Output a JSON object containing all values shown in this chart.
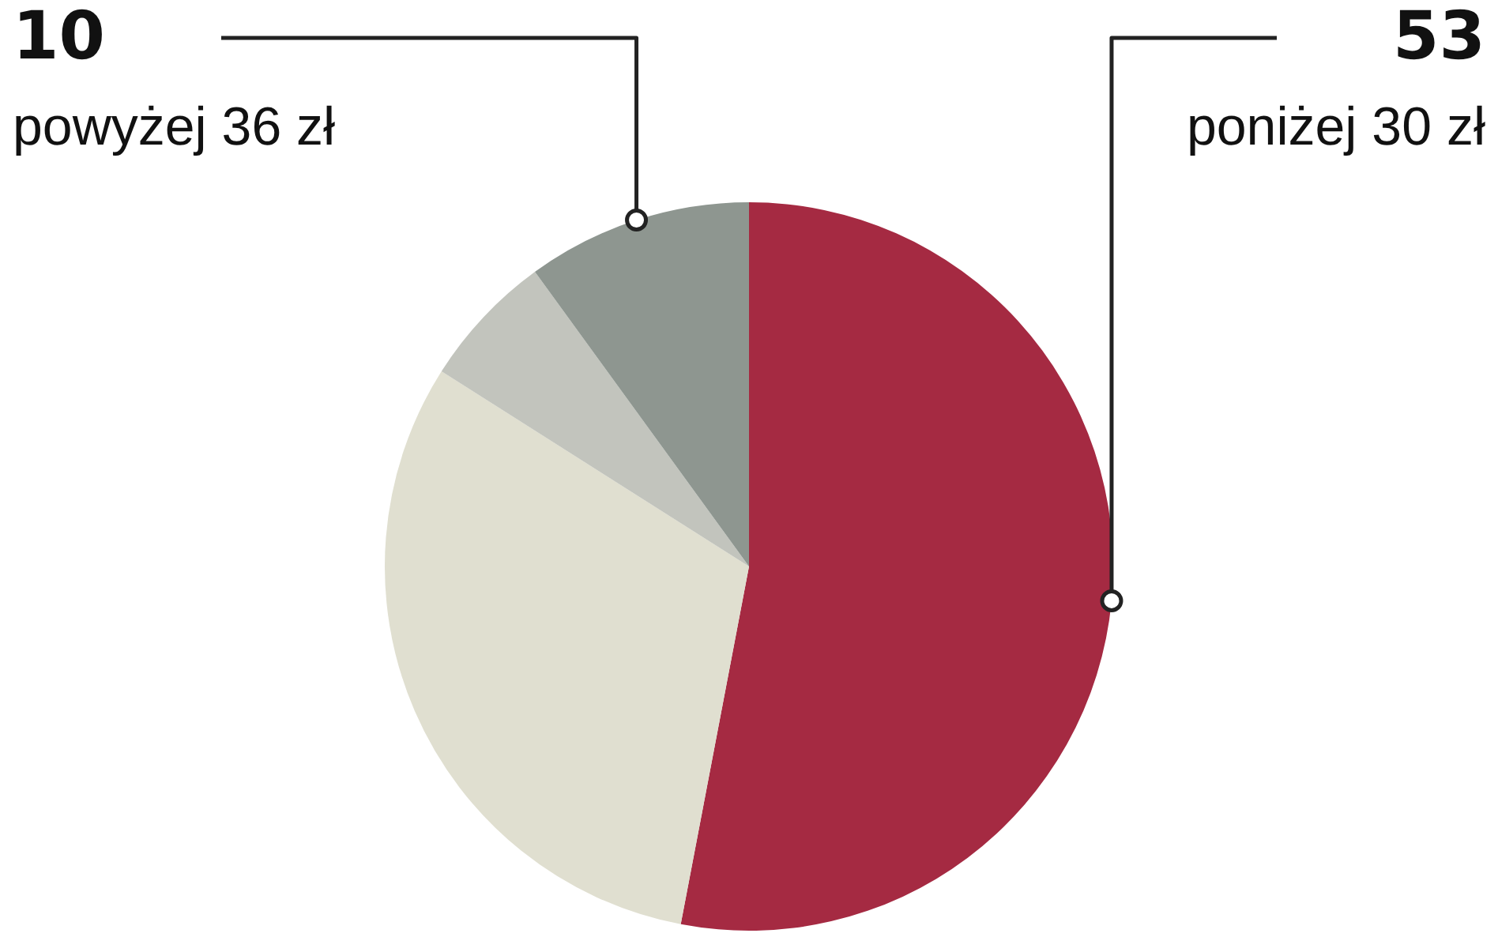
{
  "chart_data": {
    "type": "pie",
    "categories": [
      "poniżej 30 zł",
      null,
      null,
      "powyżej 36 zł"
    ],
    "values": [
      53,
      31,
      6,
      10
    ],
    "value_labels": [
      "53",
      null,
      null,
      "10"
    ],
    "colors": [
      "#a52a42",
      "#e0dfd0",
      "#c2c4bd",
      "#8e9690"
    ]
  }
}
